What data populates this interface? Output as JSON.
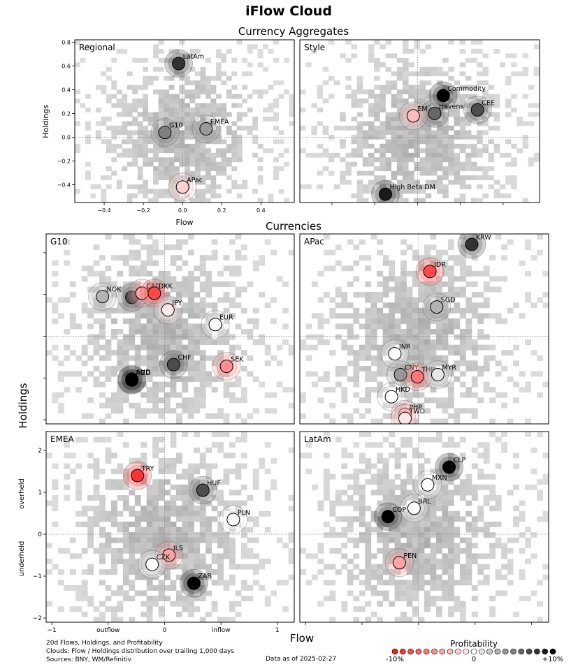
{
  "figure": {
    "title": "iFlow Cloud",
    "section_aggregates": "Currency Aggregates",
    "section_currencies": "Currencies",
    "xlabel": "Flow",
    "ylabel": "Holdings",
    "overheld_label": "overheld",
    "underheld_label": "underheld",
    "outflow_label": "outflow",
    "inflow_label": "inflow",
    "footnote_1": "20d Flows, Holdings, and Profitability",
    "footnote_2": "Clouds:  Flow / Holdings distribution over trailing 1,000 days",
    "footnote_3": "Sources:  BNY, WM/Refinitiv",
    "date_label": "Data as of 2025-02-27",
    "legend_title": "Profitability",
    "legend_min_label": "-10%",
    "legend_mid_label": "0",
    "legend_max_label": "+10%",
    "colors": {
      "neg": "#ff1a1a",
      "zero": "#ffffff",
      "pos": "#000000",
      "cloud": "#c8c8c8",
      "frame": "#000000"
    }
  },
  "chart_data": [
    {
      "type": "scatter",
      "title": "Regional",
      "xlabel": "Flow",
      "ylabel": "Holdings",
      "xlim": [
        -0.55,
        0.57
      ],
      "ylim": [
        -0.55,
        0.82
      ],
      "xticks": [
        -0.4,
        -0.2,
        0.0,
        0.2,
        0.4
      ],
      "xtick_labels": [
        "−0.4",
        "−0.2",
        "0.0",
        "0.2",
        "0.4"
      ],
      "yticks": [
        0.8,
        0.6,
        0.4,
        0.2,
        0.0,
        -0.2,
        -0.4
      ],
      "ytick_labels": [
        "0.8",
        "0.6",
        "0.4",
        "0.2",
        "0.0",
        "−0.2",
        "−0.4"
      ],
      "points": [
        {
          "label": "LatAm",
          "x": -0.02,
          "y": 0.62,
          "profit": 8
        },
        {
          "label": "G10",
          "x": -0.09,
          "y": 0.04,
          "profit": 5
        },
        {
          "label": "EMEA",
          "x": 0.12,
          "y": 0.07,
          "profit": 4
        },
        {
          "label": "APac",
          "x": 0.0,
          "y": -0.42,
          "profit": -2
        }
      ]
    },
    {
      "type": "scatter",
      "title": "Style",
      "xlim": [
        -0.55,
        0.57
      ],
      "ylim": [
        -0.55,
        0.82
      ],
      "xticks": [
        -0.4,
        -0.2,
        0.0,
        0.2,
        0.4
      ],
      "yticks": [
        0.8,
        0.6,
        0.4,
        0.2,
        0.0,
        -0.2,
        -0.4
      ],
      "points": [
        {
          "label": "Commodity",
          "x": 0.12,
          "y": 0.35,
          "profit": 10
        },
        {
          "label": "CEE",
          "x": 0.28,
          "y": 0.23,
          "profit": 7
        },
        {
          "label": "Havens",
          "x": 0.08,
          "y": 0.2,
          "profit": 6
        },
        {
          "label": "EM",
          "x": -0.02,
          "y": 0.18,
          "profit": -3
        },
        {
          "label": "High Beta DM",
          "x": -0.15,
          "y": -0.48,
          "profit": 9
        }
      ]
    },
    {
      "type": "scatter",
      "title": "G10",
      "xlim": [
        -1.05,
        1.15
      ],
      "ylim": [
        -2.1,
        2.45
      ],
      "xticks": [
        -1,
        -0.5,
        0,
        0.5,
        1
      ],
      "yticks": [
        2,
        1,
        0,
        -1,
        -2
      ],
      "points": [
        {
          "label": "NOK",
          "x": -0.55,
          "y": 0.95,
          "profit": 3
        },
        {
          "label": "GBP",
          "x": -0.29,
          "y": 0.93,
          "profit": 7
        },
        {
          "label": "CAD",
          "x": -0.2,
          "y": 1.03,
          "profit": -4
        },
        {
          "label": "DKK",
          "x": -0.09,
          "y": 1.03,
          "profit": -8
        },
        {
          "label": "JPY",
          "x": 0.03,
          "y": 0.63,
          "profit": -1
        },
        {
          "label": "EUR",
          "x": 0.45,
          "y": 0.28,
          "profit": 0
        },
        {
          "label": "SEK",
          "x": 0.55,
          "y": -0.72,
          "profit": -5
        },
        {
          "label": "CHF",
          "x": 0.08,
          "y": -0.68,
          "profit": 7
        },
        {
          "label": "AUD",
          "x": -0.29,
          "y": -1.03,
          "profit": 8
        },
        {
          "label": "NZD",
          "x": -0.29,
          "y": -1.05,
          "profit": 10
        }
      ]
    },
    {
      "type": "scatter",
      "title": "APac",
      "xlim": [
        -1.05,
        1.15
      ],
      "ylim": [
        -2.1,
        2.45
      ],
      "xticks": [
        -1,
        -0.5,
        0,
        0.5,
        1
      ],
      "yticks": [
        2,
        1,
        0,
        -1,
        -2
      ],
      "points": [
        {
          "label": "KRW",
          "x": 0.47,
          "y": 2.2,
          "profit": 8
        },
        {
          "label": "IDR",
          "x": 0.1,
          "y": 1.55,
          "profit": -8
        },
        {
          "label": "SGD",
          "x": 0.16,
          "y": 0.7,
          "profit": 3
        },
        {
          "label": "INR",
          "x": -0.21,
          "y": -0.42,
          "profit": 0
        },
        {
          "label": "CNY",
          "x": -0.16,
          "y": -0.92,
          "profit": 4
        },
        {
          "label": "THB",
          "x": -0.01,
          "y": -0.97,
          "profit": -6
        },
        {
          "label": "MYR",
          "x": 0.17,
          "y": -0.92,
          "profit": 1
        },
        {
          "label": "HKD",
          "x": -0.24,
          "y": -1.45,
          "profit": 0
        },
        {
          "label": "PHP",
          "x": -0.12,
          "y": -1.87,
          "profit": -5
        },
        {
          "label": "TWD",
          "x": -0.12,
          "y": -1.97,
          "profit": -1
        }
      ]
    },
    {
      "type": "scatter",
      "title": "EMEA",
      "xlabel": "Flow",
      "ylabel": "Holdings",
      "xlim": [
        -1.05,
        1.15
      ],
      "ylim": [
        -2.1,
        2.45
      ],
      "xticks": [
        -1,
        -0.5,
        0,
        0.5,
        1
      ],
      "xtick_labels": [
        "−1",
        "outflow",
        "0",
        "inflow",
        "1"
      ],
      "yticks": [
        2,
        1,
        0,
        -1,
        -2
      ],
      "ytick_labels": [
        "2",
        "1",
        "0",
        "−1",
        "−2"
      ],
      "points": [
        {
          "label": "TRY",
          "x": -0.24,
          "y": 1.4,
          "profit": -9
        },
        {
          "label": "HUF",
          "x": 0.34,
          "y": 1.05,
          "profit": 7
        },
        {
          "label": "PLN",
          "x": 0.61,
          "y": 0.35,
          "profit": 0
        },
        {
          "label": "ILS",
          "x": 0.04,
          "y": -0.5,
          "profit": -4
        },
        {
          "label": "CZK",
          "x": -0.11,
          "y": -0.72,
          "profit": 0
        },
        {
          "label": "ZAR",
          "x": 0.26,
          "y": -1.17,
          "profit": 10
        }
      ]
    },
    {
      "type": "scatter",
      "title": "LatAm",
      "xlim": [
        -1.05,
        1.15
      ],
      "ylim": [
        -2.1,
        2.45
      ],
      "xticks": [
        -1,
        -0.5,
        0,
        0.5,
        1
      ],
      "yticks": [
        2,
        1,
        0,
        -1,
        -2
      ],
      "points": [
        {
          "label": "CLP",
          "x": 0.27,
          "y": 1.6,
          "profit": 10
        },
        {
          "label": "MXN",
          "x": 0.08,
          "y": 1.18,
          "profit": 0
        },
        {
          "label": "BRL",
          "x": -0.04,
          "y": 0.62,
          "profit": 0
        },
        {
          "label": "COP",
          "x": -0.27,
          "y": 0.42,
          "profit": 10
        },
        {
          "label": "PEN",
          "x": -0.17,
          "y": -0.68,
          "profit": -4
        }
      ]
    }
  ]
}
